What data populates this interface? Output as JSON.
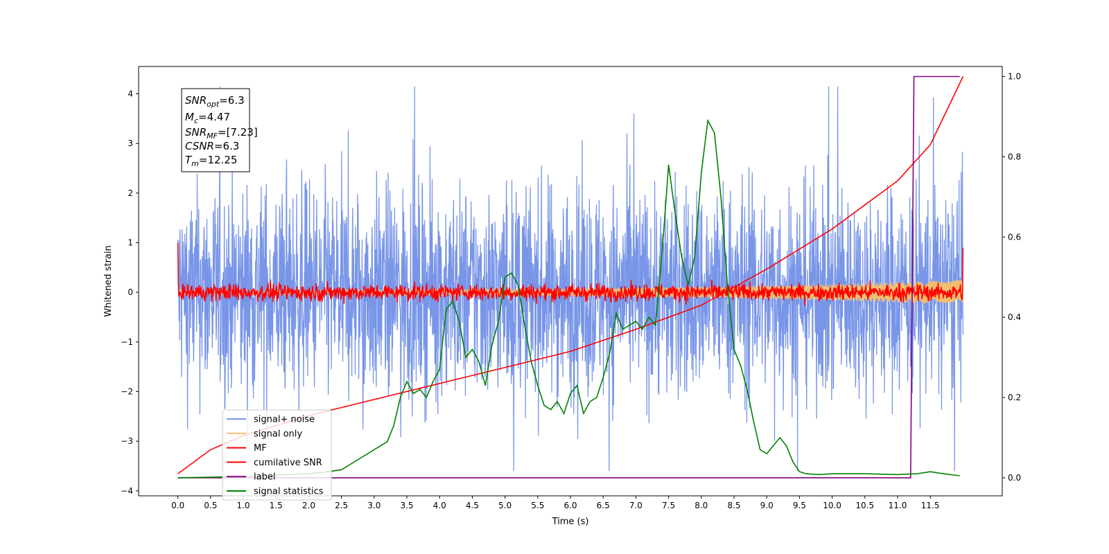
{
  "chart_data": {
    "type": "line",
    "xlabel": "Time (s)",
    "ylabel": "Whitened strain",
    "xlim": [
      -0.6,
      12.6
    ],
    "ylim": [
      -4.1,
      4.55
    ],
    "y2lim": [
      -0.045,
      1.025
    ],
    "xticks": [
      "0.0",
      "0.5",
      "1.0",
      "1.5",
      "2.0",
      "2.5",
      "3.0",
      "3.5",
      "4.0",
      "4.5",
      "5.0",
      "5.5",
      "6.0",
      "6.5",
      "7.0",
      "7.5",
      "8.0",
      "8.5",
      "9.0",
      "9.5",
      "10.0",
      "10.5",
      "11.0",
      "11.5"
    ],
    "yticks": [
      "−4",
      "−3",
      "−2",
      "−1",
      "0",
      "1",
      "2",
      "3",
      "4"
    ],
    "y2ticks": [
      "0.0",
      "0.2",
      "0.4",
      "0.6",
      "0.8",
      "1.0"
    ],
    "info_box": {
      "snr_opt": {
        "main": "SNR",
        "sub": "opt",
        "value": "=6.3"
      },
      "mc": {
        "main": "M",
        "sub": "c",
        "value": "=4.47"
      },
      "snr_mf": {
        "main": "SNR",
        "sub": "MF",
        "value": "=[7.23]"
      },
      "csnr": {
        "main": "CSNR",
        "value": "=6.3"
      },
      "tm": {
        "main": "T",
        "sub": "m",
        "value": "=12.25"
      }
    },
    "legend": [
      "signal+ noise",
      "signal only",
      "MF",
      "cumilative SNR",
      "label",
      "signal statistics"
    ],
    "series": [
      {
        "name": "signal+ noise",
        "axis": "left",
        "color": "#7895e8",
        "x_range": [
          0.0,
          12.0
        ],
        "noise_band": [
          -2.6,
          2.6
        ],
        "peaks": [
          4.15,
          -3.6
        ]
      },
      {
        "name": "signal only",
        "axis": "left",
        "color": "#f5bf6e",
        "x_range": [
          0.0,
          12.0
        ],
        "amplitude_start": 0.05,
        "amplitude_end": 0.25
      },
      {
        "name": "MF",
        "axis": "left",
        "color": "#ff0000",
        "x_range": [
          0.0,
          12.0
        ],
        "band": [
          -0.2,
          0.2
        ],
        "start_value": 1.0,
        "end_value": 0.9
      },
      {
        "name": "cumilative SNR",
        "axis": "right",
        "color": "#ff0000",
        "x": [
          0.0,
          0.5,
          1.0,
          2.0,
          3.0,
          4.0,
          5.0,
          6.0,
          7.0,
          8.0,
          9.0,
          10.0,
          11.0,
          11.5,
          12.0
        ],
        "y": [
          0.01,
          0.07,
          0.105,
          0.155,
          0.195,
          0.235,
          0.275,
          0.315,
          0.37,
          0.43,
          0.52,
          0.62,
          0.74,
          0.83,
          1.0
        ]
      },
      {
        "name": "label",
        "axis": "right",
        "color": "#800080",
        "x": [
          0.0,
          11.2,
          11.25,
          11.95
        ],
        "y": [
          0.0,
          0.0,
          1.0,
          1.0
        ]
      },
      {
        "name": "signal statistics",
        "axis": "right",
        "color": "#008000",
        "x": [
          0.0,
          1.0,
          2.0,
          2.3,
          2.5,
          2.6,
          2.8,
          3.0,
          3.1,
          3.2,
          3.3,
          3.4,
          3.5,
          3.6,
          3.7,
          3.8,
          3.9,
          4.0,
          4.1,
          4.2,
          4.3,
          4.4,
          4.5,
          4.6,
          4.7,
          4.8,
          4.9,
          5.0,
          5.1,
          5.2,
          5.3,
          5.4,
          5.5,
          5.6,
          5.7,
          5.8,
          5.9,
          6.0,
          6.1,
          6.2,
          6.3,
          6.4,
          6.5,
          6.6,
          6.7,
          6.8,
          6.9,
          7.0,
          7.1,
          7.2,
          7.3,
          7.4,
          7.5,
          7.6,
          7.7,
          7.8,
          7.9,
          8.0,
          8.1,
          8.2,
          8.3,
          8.4,
          8.5,
          8.6,
          8.7,
          8.8,
          8.9,
          9.0,
          9.1,
          9.2,
          9.3,
          9.4,
          9.5,
          9.6,
          9.8,
          10.0,
          10.5,
          11.0,
          11.3,
          11.5,
          11.7,
          11.95
        ],
        "y": [
          0.0,
          0.003,
          0.01,
          0.015,
          0.02,
          0.03,
          0.05,
          0.07,
          0.08,
          0.09,
          0.13,
          0.2,
          0.24,
          0.21,
          0.22,
          0.2,
          0.24,
          0.27,
          0.42,
          0.44,
          0.39,
          0.3,
          0.32,
          0.29,
          0.23,
          0.33,
          0.39,
          0.5,
          0.51,
          0.48,
          0.38,
          0.29,
          0.23,
          0.18,
          0.17,
          0.19,
          0.16,
          0.21,
          0.23,
          0.16,
          0.19,
          0.2,
          0.25,
          0.31,
          0.41,
          0.37,
          0.38,
          0.39,
          0.37,
          0.4,
          0.38,
          0.56,
          0.78,
          0.66,
          0.55,
          0.48,
          0.55,
          0.76,
          0.89,
          0.86,
          0.7,
          0.48,
          0.32,
          0.28,
          0.22,
          0.14,
          0.07,
          0.06,
          0.08,
          0.1,
          0.08,
          0.04,
          0.015,
          0.01,
          0.008,
          0.01,
          0.01,
          0.008,
          0.01,
          0.015,
          0.01,
          0.005
        ]
      }
    ]
  }
}
